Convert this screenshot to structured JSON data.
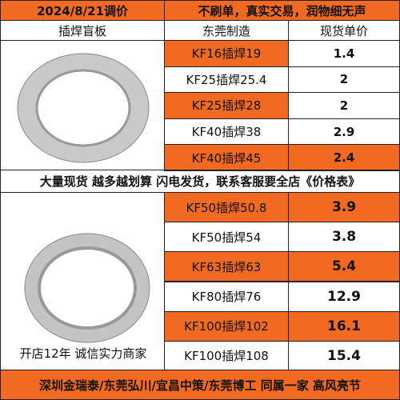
{
  "header": {
    "date": "2024/8/21调价",
    "slogan": "不刷单，真实交易，润物细无声"
  },
  "columns": {
    "product": "插焊盲板",
    "origin": "东莞制造",
    "price": "现货单价"
  },
  "group1": {
    "rows": [
      [
        "KF16插焊19",
        "1.4"
      ],
      [
        "KF25插焊25.4",
        "2"
      ],
      [
        "KF25插焊28",
        "2"
      ],
      [
        "KF40插焊38",
        "2.9"
      ],
      [
        "KF40插焊45",
        "2.4"
      ]
    ]
  },
  "banner": "大量现货 越多越划算 闪电发货，联系客服要全店《价格表》",
  "group2": {
    "rows": [
      [
        "KF50插焊50.8",
        "3.9"
      ],
      [
        "KF50插焊54",
        "3.8"
      ],
      [
        "KF63插焊63",
        "5.4"
      ],
      [
        "KF80插焊76",
        "12.9"
      ],
      [
        "KF100插焊102",
        "16.1"
      ],
      [
        "KF100插焊108",
        "15.4"
      ]
    ],
    "note": "开店12年 诚信实力商家"
  },
  "footer": "深圳金瑞泰/东莞弘川/宜昌中策/东莞博工 同属一家 高风亮节"
}
